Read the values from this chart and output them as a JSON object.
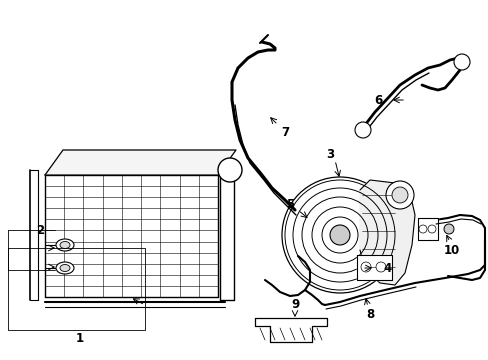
{
  "background_color": "#ffffff",
  "line_color": "#000000",
  "figsize": [
    4.89,
    3.6
  ],
  "dpi": 100,
  "label_fontsize": 8.5
}
